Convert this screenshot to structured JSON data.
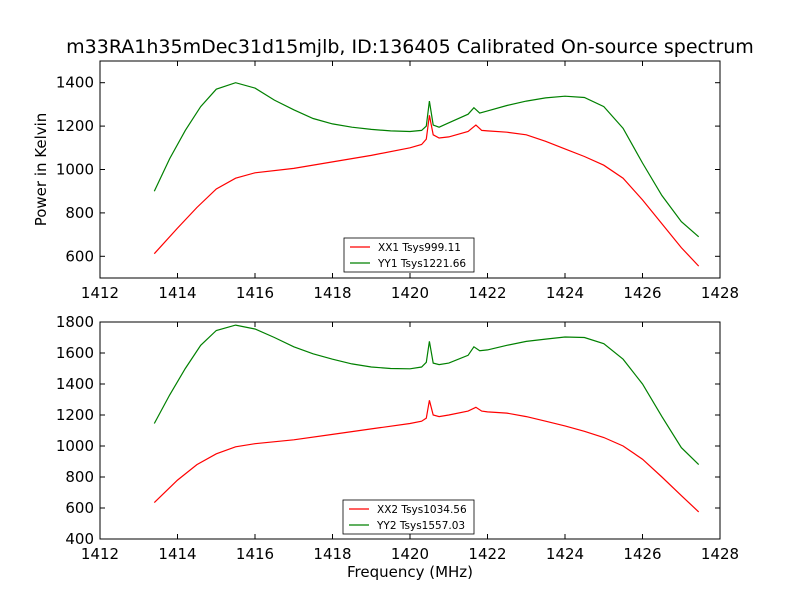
{
  "chart_data": [
    {
      "type": "line",
      "title": "m33RA1h35mDec31d15mjlb, ID:136405 Calibrated On-source spectrum",
      "xlabel": "",
      "ylabel": "Power in Kelvin",
      "xlim": [
        1412,
        1428
      ],
      "ylim": [
        500,
        1500
      ],
      "xticks": [
        1412,
        1414,
        1416,
        1418,
        1420,
        1422,
        1424,
        1426,
        1428
      ],
      "yticks": [
        600,
        800,
        1000,
        1200,
        1400
      ],
      "legend_position": "lower-center",
      "series": [
        {
          "name": "XX1 Tsys999.11",
          "color": "#ff0000",
          "x": [
            1413.4,
            1414.0,
            1414.5,
            1415.0,
            1415.5,
            1416.0,
            1417.0,
            1418.0,
            1419.0,
            1420.0,
            1420.3,
            1420.42,
            1420.5,
            1420.6,
            1420.75,
            1421.0,
            1421.5,
            1421.7,
            1421.85,
            1422.0,
            1422.5,
            1423.0,
            1423.5,
            1424.0,
            1424.5,
            1425.0,
            1425.5,
            1426.0,
            1426.5,
            1427.0,
            1427.45
          ],
          "y": [
            612,
            730,
            825,
            910,
            960,
            985,
            1005,
            1035,
            1065,
            1100,
            1115,
            1140,
            1250,
            1160,
            1145,
            1150,
            1175,
            1205,
            1180,
            1178,
            1172,
            1160,
            1130,
            1095,
            1060,
            1020,
            960,
            860,
            750,
            640,
            555
          ]
        },
        {
          "name": "YY1 Tsys1221.66",
          "color": "#008000",
          "x": [
            1413.4,
            1413.8,
            1414.2,
            1414.6,
            1415.0,
            1415.5,
            1416.0,
            1416.5,
            1417.0,
            1417.5,
            1418.0,
            1418.5,
            1419.0,
            1419.5,
            1420.0,
            1420.3,
            1420.42,
            1420.5,
            1420.6,
            1420.75,
            1421.0,
            1421.5,
            1421.65,
            1421.8,
            1422.0,
            1422.5,
            1423.0,
            1423.5,
            1424.0,
            1424.5,
            1425.0,
            1425.5,
            1426.0,
            1426.5,
            1427.0,
            1427.45
          ],
          "y": [
            900,
            1050,
            1180,
            1290,
            1370,
            1400,
            1375,
            1320,
            1275,
            1235,
            1210,
            1195,
            1185,
            1178,
            1175,
            1180,
            1200,
            1315,
            1205,
            1195,
            1215,
            1255,
            1285,
            1260,
            1270,
            1295,
            1315,
            1330,
            1338,
            1332,
            1290,
            1190,
            1030,
            880,
            760,
            690
          ]
        }
      ]
    },
    {
      "type": "line",
      "title": "",
      "xlabel": "Frequency (MHz)",
      "ylabel": "",
      "xlim": [
        1412,
        1428
      ],
      "ylim": [
        400,
        1800
      ],
      "xticks": [
        1412,
        1414,
        1416,
        1418,
        1420,
        1422,
        1424,
        1426,
        1428
      ],
      "yticks": [
        400,
        600,
        800,
        1000,
        1200,
        1400,
        1600,
        1800
      ],
      "legend_position": "lower-center",
      "series": [
        {
          "name": "XX2 Tsys1034.56",
          "color": "#ff0000",
          "x": [
            1413.4,
            1414.0,
            1414.5,
            1415.0,
            1415.5,
            1416.0,
            1417.0,
            1418.0,
            1419.0,
            1420.0,
            1420.3,
            1420.42,
            1420.5,
            1420.6,
            1420.75,
            1421.0,
            1421.5,
            1421.7,
            1421.85,
            1422.0,
            1422.5,
            1423.0,
            1423.5,
            1424.0,
            1424.5,
            1425.0,
            1425.5,
            1426.0,
            1426.5,
            1427.0,
            1427.45
          ],
          "y": [
            635,
            780,
            880,
            950,
            995,
            1015,
            1040,
            1075,
            1110,
            1145,
            1160,
            1180,
            1295,
            1200,
            1190,
            1200,
            1225,
            1250,
            1225,
            1220,
            1212,
            1190,
            1160,
            1130,
            1095,
            1055,
            1000,
            915,
            800,
            680,
            575
          ]
        },
        {
          "name": "YY2 Tsys1557.03",
          "color": "#008000",
          "x": [
            1413.4,
            1413.8,
            1414.2,
            1414.6,
            1415.0,
            1415.5,
            1416.0,
            1416.5,
            1417.0,
            1417.5,
            1418.0,
            1418.5,
            1419.0,
            1419.5,
            1420.0,
            1420.3,
            1420.42,
            1420.5,
            1420.6,
            1420.75,
            1421.0,
            1421.5,
            1421.65,
            1421.8,
            1422.0,
            1422.5,
            1423.0,
            1423.5,
            1424.0,
            1424.5,
            1425.0,
            1425.5,
            1426.0,
            1426.5,
            1427.0,
            1427.45
          ],
          "y": [
            1145,
            1330,
            1500,
            1650,
            1745,
            1780,
            1755,
            1700,
            1640,
            1595,
            1560,
            1530,
            1510,
            1500,
            1498,
            1510,
            1540,
            1675,
            1535,
            1525,
            1535,
            1585,
            1640,
            1615,
            1620,
            1650,
            1675,
            1690,
            1703,
            1700,
            1660,
            1560,
            1400,
            1190,
            990,
            880
          ]
        }
      ]
    }
  ]
}
